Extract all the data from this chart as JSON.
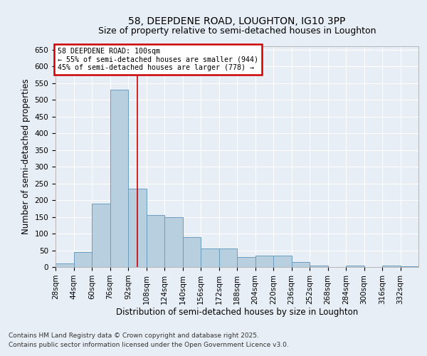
{
  "title1": "58, DEEPDENE ROAD, LOUGHTON, IG10 3PP",
  "title2": "Size of property relative to semi-detached houses in Loughton",
  "xlabel": "Distribution of semi-detached houses by size in Loughton",
  "ylabel": "Number of semi-detached properties",
  "footnote1": "Contains HM Land Registry data © Crown copyright and database right 2025.",
  "footnote2": "Contains public sector information licensed under the Open Government Licence v3.0.",
  "annotation_title": "58 DEEPDENE ROAD: 100sqm",
  "annotation_line1": "← 55% of semi-detached houses are smaller (944)",
  "annotation_line2": "45% of semi-detached houses are larger (778) →",
  "property_size": 100,
  "bin_edges": [
    28,
    44,
    60,
    76,
    92,
    108,
    124,
    140,
    156,
    172,
    188,
    204,
    220,
    236,
    252,
    268,
    284,
    300,
    316,
    332,
    348
  ],
  "bar_heights": [
    10,
    45,
    190,
    530,
    235,
    155,
    150,
    90,
    55,
    55,
    30,
    35,
    35,
    15,
    5,
    0,
    5,
    0,
    5,
    3
  ],
  "bar_color": "#b8cfe0",
  "bar_edge_color": "#6a9dc0",
  "vline_color": "#cc0000",
  "vline_x": 100,
  "ylim": [
    0,
    660
  ],
  "yticks": [
    0,
    50,
    100,
    150,
    200,
    250,
    300,
    350,
    400,
    450,
    500,
    550,
    600,
    650
  ],
  "bg_color": "#e8eef5",
  "plot_bg_color": "#e8eef5",
  "grid_color": "#ffffff",
  "annotation_box_color": "#cc0000",
  "title_fontsize": 10,
  "subtitle_fontsize": 9,
  "axis_label_fontsize": 8.5,
  "tick_fontsize": 7.5,
  "footnote_fontsize": 6.5
}
